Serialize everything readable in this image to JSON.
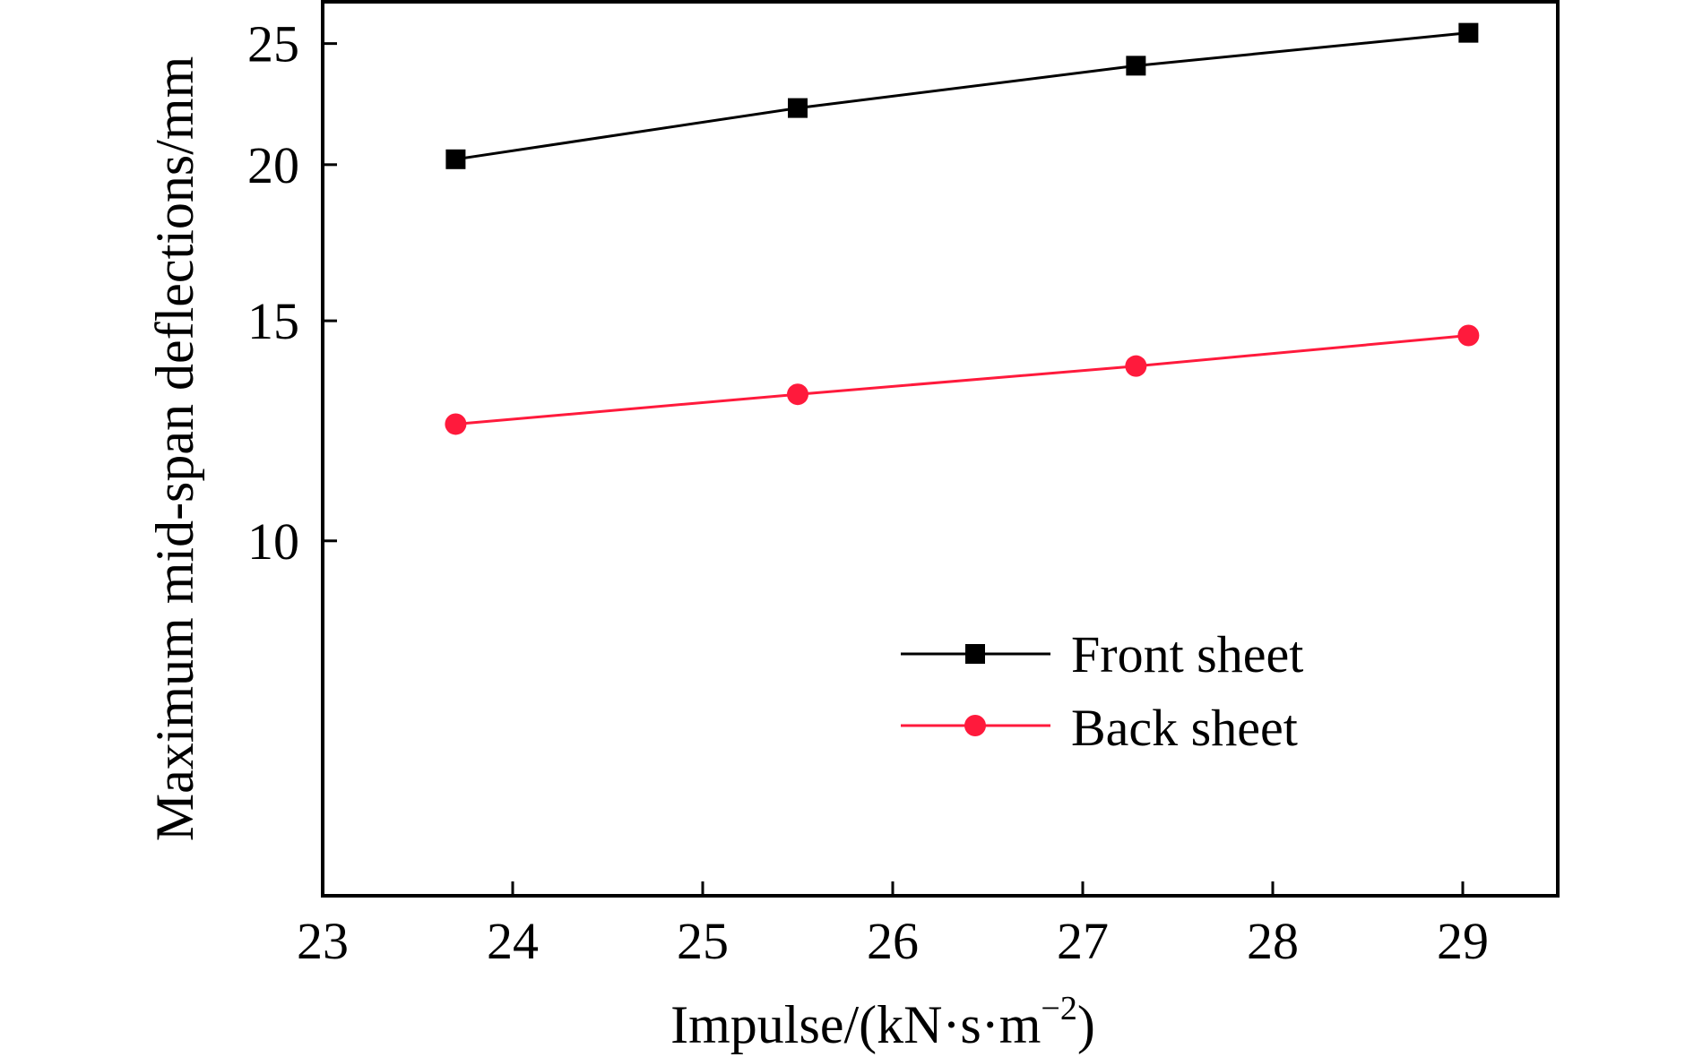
{
  "chart_data": {
    "type": "line",
    "title": "",
    "xlabel": "Impulse/(kN·s·m",
    "xlabel_sup": "−2",
    "xlabel_close": ")",
    "ylabel": "Maximum mid-span deflections/mm",
    "xlim": [
      23,
      29.5
    ],
    "ylim": [
      5.2,
      27
    ],
    "y_scale": "log",
    "x_ticks": [
      23,
      24,
      25,
      26,
      27,
      28,
      29
    ],
    "y_ticks": [
      10,
      15,
      20,
      25
    ],
    "grid": false,
    "legend_position": "center-right",
    "series": [
      {
        "name": "Front sheet",
        "color": "#000000",
        "marker": "square",
        "x": [
          23.7,
          25.5,
          27.28,
          29.03
        ],
        "y": [
          20.2,
          22.2,
          24.0,
          25.5
        ]
      },
      {
        "name": "Back sheet",
        "color": "#ff1a3c",
        "marker": "circle",
        "x": [
          23.7,
          25.5,
          27.28,
          29.03
        ],
        "y": [
          12.4,
          13.1,
          13.8,
          14.6
        ]
      }
    ]
  }
}
